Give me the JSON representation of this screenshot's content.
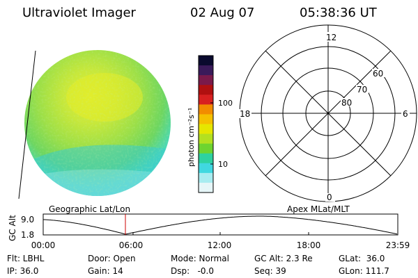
{
  "header": {
    "instrument": "Ultraviolet Imager",
    "date": "02 Aug 07",
    "time": "05:38:36 UT"
  },
  "colorbar": {
    "unit_label": "photon cm⁻²s⁻¹",
    "tick_100": "100",
    "tick_10": "10",
    "colors": [
      "#0a0a2e",
      "#3a1a5a",
      "#7a1a4a",
      "#b01010",
      "#d82020",
      "#f28c00",
      "#f5c000",
      "#e6e600",
      "#b4e020",
      "#6ed430",
      "#2ed2a0",
      "#40d8e0",
      "#a8ecf0",
      "#e6f6f8"
    ]
  },
  "polar_plot": {
    "top_label": "12",
    "bottom_label": "0",
    "left_label": "18",
    "right_label": "6",
    "lat_60": "60",
    "lat_70": "70",
    "lat_80": "80"
  },
  "timeline": {
    "left_label": "Geographic Lat/Lon",
    "right_label": "Apex MLat/MLT",
    "axis_title": "GC Alt",
    "y_high": "9.0",
    "y_low": "1.8",
    "x_ticks": [
      "00:00",
      "06:00",
      "12:00",
      "18:00",
      "23:59"
    ],
    "current_marker_color": "#cc0000",
    "curve_color": "#000000"
  },
  "info": {
    "row1": {
      "flt": "Flt: LBHL",
      "door": "Door: Open",
      "mode": "Mode: Normal",
      "gc_alt": "GC Alt: 2.3 Re",
      "glat": "GLat:  36.0"
    },
    "row2": {
      "ip": "IP: 36.0",
      "gain": "Gain: 14",
      "dsp": "Dsp:   -0.0",
      "seq": "Seq: 39",
      "glon": "GLon: 111.7"
    }
  }
}
